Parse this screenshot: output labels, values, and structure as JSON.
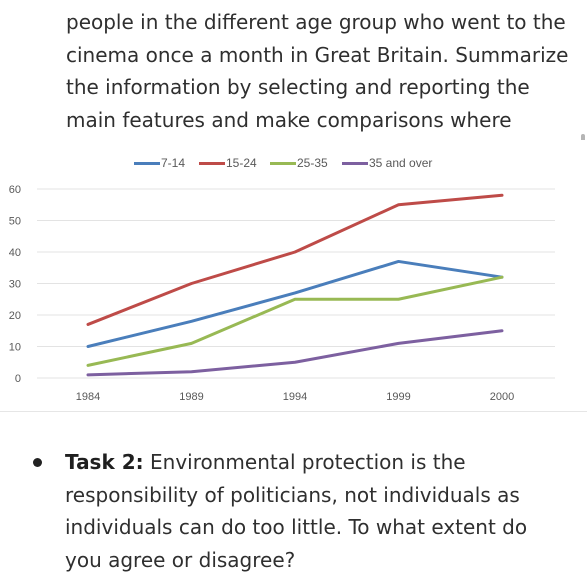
{
  "task1": {
    "text": "people in the different age group who went to the cinema once a month in Great Britain. Summarize the information by selecting and reporting the main features and make comparisons where relevant."
  },
  "chart_data": {
    "type": "line",
    "title": "",
    "xlabel": "",
    "ylabel": "",
    "x": [
      "1984",
      "1989",
      "1994",
      "1999",
      "2000"
    ],
    "yticks": [
      "0",
      "10",
      "20",
      "30",
      "40",
      "50",
      "60"
    ],
    "ylim": [
      0,
      60
    ],
    "grid": true,
    "legend_position": "top",
    "series": [
      {
        "name": "7-14",
        "color": "#4a7ebb",
        "values": [
          10,
          18,
          27,
          37,
          32
        ]
      },
      {
        "name": "15-24",
        "color": "#be4b48",
        "values": [
          17,
          30,
          40,
          55,
          58
        ]
      },
      {
        "name": "25-35",
        "color": "#98b954",
        "values": [
          4,
          11,
          25,
          25,
          32
        ]
      },
      {
        "name": "35 and over",
        "color": "#7d60a0",
        "values": [
          1,
          2,
          5,
          11,
          15
        ]
      }
    ]
  },
  "task2": {
    "label": "Task 2:",
    "text": " Environmental protection is the responsibility of politicians, not individuals as individuals can do too little. To what extent do you agree or disagree?"
  }
}
